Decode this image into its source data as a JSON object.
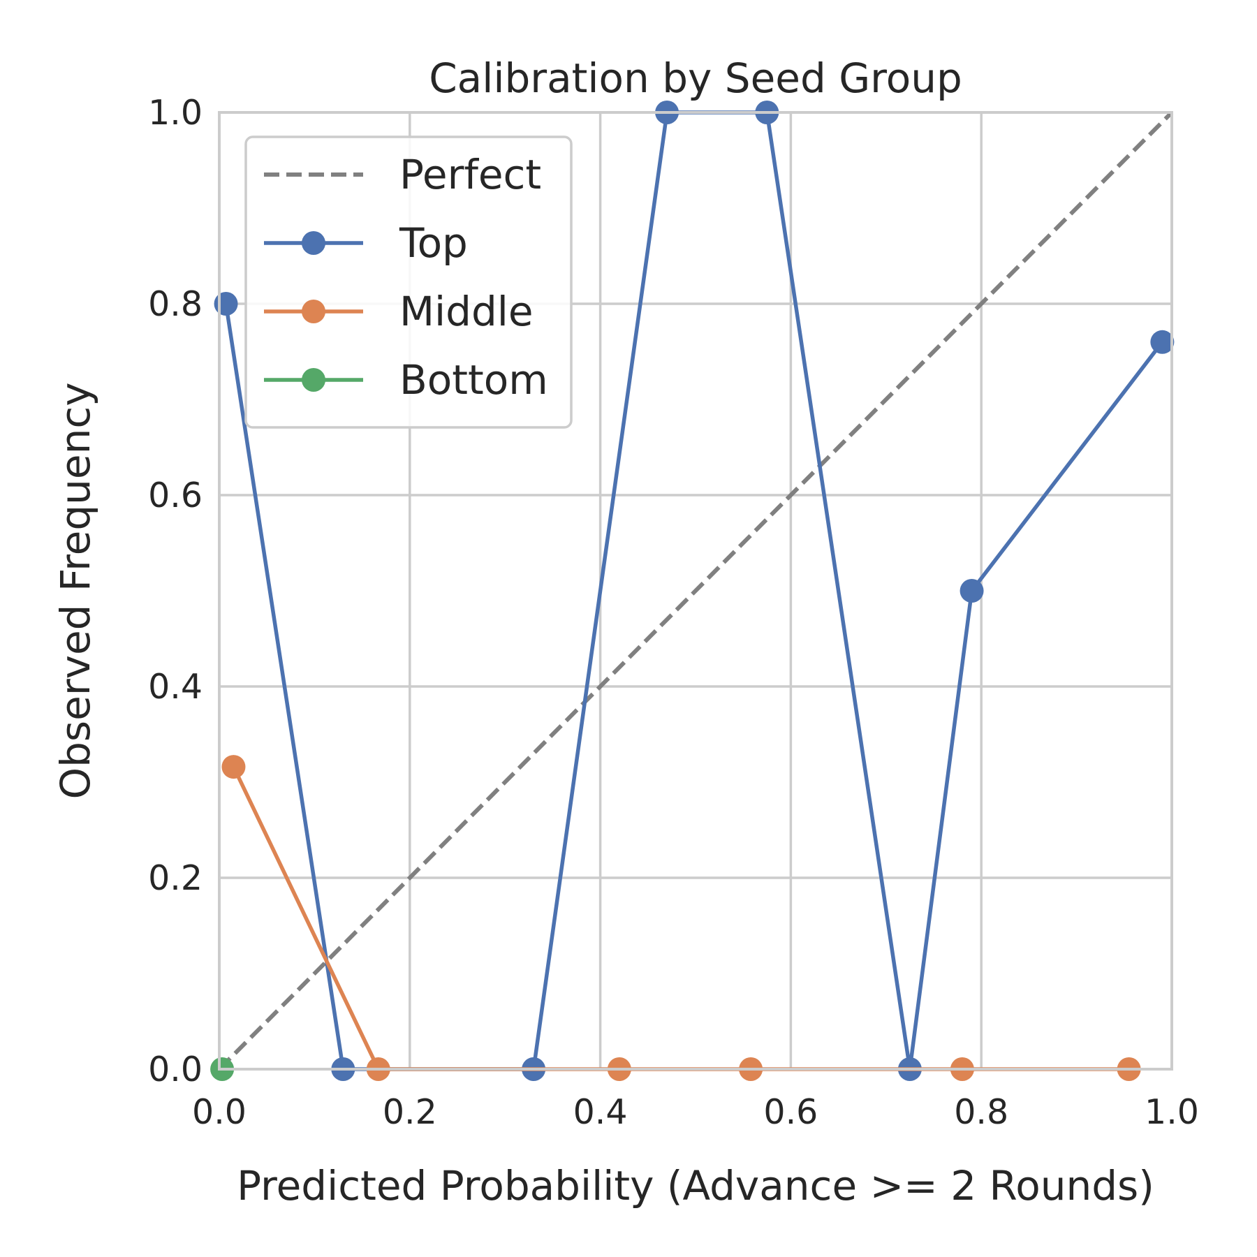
{
  "chart_data": {
    "type": "line",
    "title": "Calibration by Seed Group",
    "xlabel": "Predicted Probability (Advance >= 2 Rounds)",
    "ylabel": "Observed Frequency",
    "xlim": [
      0.0,
      1.0
    ],
    "ylim": [
      0.0,
      1.0
    ],
    "xticks": [
      "0.0",
      "0.2",
      "0.4",
      "0.6",
      "0.8",
      "1.0"
    ],
    "yticks": [
      "0.0",
      "0.2",
      "0.4",
      "0.6",
      "0.8",
      "1.0"
    ],
    "grid": true,
    "legend_position": "upper-left",
    "reference_line": {
      "name": "Perfect",
      "x": [
        0.0,
        1.0
      ],
      "y": [
        0.0,
        1.0
      ],
      "color": "#808080",
      "style": "dashed"
    },
    "series": [
      {
        "name": "Top",
        "color": "#4c72b0",
        "x": [
          0.007,
          0.13,
          0.33,
          0.47,
          0.575,
          0.725,
          0.79,
          0.99
        ],
        "y": [
          0.8,
          0.0,
          0.0,
          1.0,
          1.0,
          0.0,
          0.5,
          0.76
        ]
      },
      {
        "name": "Middle",
        "color": "#dd8452",
        "x": [
          0.015,
          0.167,
          0.42,
          0.558,
          0.78,
          0.955
        ],
        "y": [
          0.316,
          0.0,
          0.0,
          0.0,
          0.0,
          0.0
        ]
      },
      {
        "name": "Bottom",
        "color": "#55a868",
        "x": [
          0.003
        ],
        "y": [
          0.0
        ]
      }
    ]
  }
}
